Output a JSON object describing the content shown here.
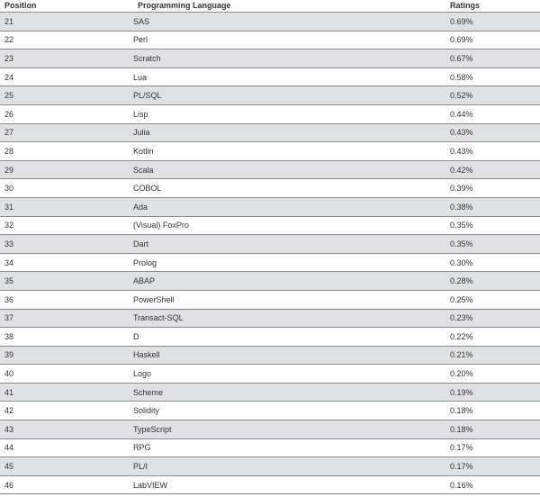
{
  "table": {
    "headers": {
      "position": "Position",
      "language": "Programming Language",
      "ratings": "Ratings"
    },
    "rows": [
      {
        "position": "21",
        "language": "SAS",
        "rating": "0.69%"
      },
      {
        "position": "22",
        "language": "Perl",
        "rating": "0.69%"
      },
      {
        "position": "23",
        "language": "Scratch",
        "rating": "0.67%"
      },
      {
        "position": "24",
        "language": "Lua",
        "rating": "0.58%"
      },
      {
        "position": "25",
        "language": "PL/SQL",
        "rating": "0.52%"
      },
      {
        "position": "26",
        "language": "Lisp",
        "rating": "0.44%"
      },
      {
        "position": "27",
        "language": "Julia",
        "rating": "0.43%"
      },
      {
        "position": "28",
        "language": "Kotlin",
        "rating": "0.43%"
      },
      {
        "position": "29",
        "language": "Scala",
        "rating": "0.42%"
      },
      {
        "position": "30",
        "language": "COBOL",
        "rating": "0.39%"
      },
      {
        "position": "31",
        "language": "Ada",
        "rating": "0.38%"
      },
      {
        "position": "32",
        "language": "(Visual) FoxPro",
        "rating": "0.35%"
      },
      {
        "position": "33",
        "language": "Dart",
        "rating": "0.35%"
      },
      {
        "position": "34",
        "language": "Prolog",
        "rating": "0.30%"
      },
      {
        "position": "35",
        "language": "ABAP",
        "rating": "0.28%"
      },
      {
        "position": "36",
        "language": "PowerShell",
        "rating": "0.25%"
      },
      {
        "position": "37",
        "language": "Transact-SQL",
        "rating": "0.23%"
      },
      {
        "position": "38",
        "language": "D",
        "rating": "0.22%"
      },
      {
        "position": "39",
        "language": "Haskell",
        "rating": "0.21%"
      },
      {
        "position": "40",
        "language": "Logo",
        "rating": "0.20%"
      },
      {
        "position": "41",
        "language": "Scheme",
        "rating": "0.19%"
      },
      {
        "position": "42",
        "language": "Solidity",
        "rating": "0.18%"
      },
      {
        "position": "43",
        "language": "TypeScript",
        "rating": "0.18%"
      },
      {
        "position": "44",
        "language": "RPG",
        "rating": "0.17%"
      },
      {
        "position": "45",
        "language": "PL/I",
        "rating": "0.17%"
      },
      {
        "position": "46",
        "language": "LabVIEW",
        "rating": "0.16%"
      }
    ]
  }
}
